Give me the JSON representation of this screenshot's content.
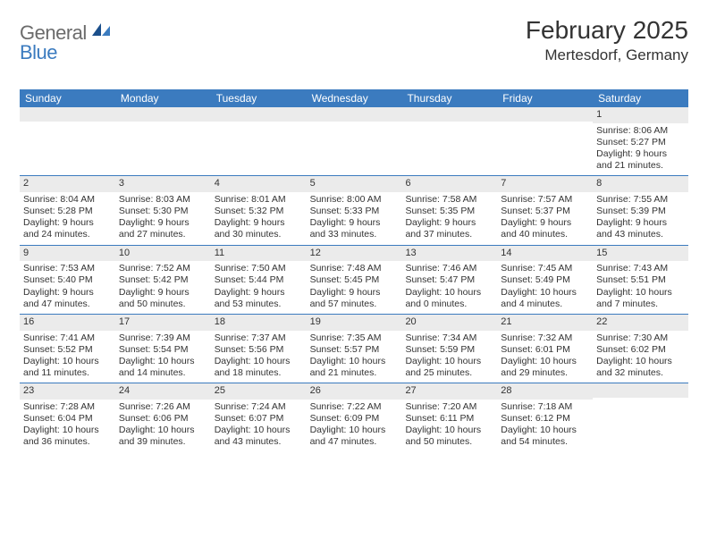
{
  "brand": {
    "part1": "General",
    "part2": "Blue",
    "icon_color": "#1b4f8b"
  },
  "title": "February 2025",
  "location": "Mertesdorf, Germany",
  "colors": {
    "header_bar": "#3b7bbf",
    "header_text": "#ffffff",
    "day_band": "#ebebeb",
    "rule": "#3b7bbf",
    "text": "#333333",
    "logo_gray": "#6b6b6b",
    "logo_blue": "#3b7bbf",
    "background": "#ffffff"
  },
  "weekdays": [
    "Sunday",
    "Monday",
    "Tuesday",
    "Wednesday",
    "Thursday",
    "Friday",
    "Saturday"
  ],
  "weeks": [
    [
      {
        "n": "",
        "sunrise": "",
        "sunset": "",
        "daylight": ""
      },
      {
        "n": "",
        "sunrise": "",
        "sunset": "",
        "daylight": ""
      },
      {
        "n": "",
        "sunrise": "",
        "sunset": "",
        "daylight": ""
      },
      {
        "n": "",
        "sunrise": "",
        "sunset": "",
        "daylight": ""
      },
      {
        "n": "",
        "sunrise": "",
        "sunset": "",
        "daylight": ""
      },
      {
        "n": "",
        "sunrise": "",
        "sunset": "",
        "daylight": ""
      },
      {
        "n": "1",
        "sunrise": "Sunrise: 8:06 AM",
        "sunset": "Sunset: 5:27 PM",
        "daylight": "Daylight: 9 hours and 21 minutes."
      }
    ],
    [
      {
        "n": "2",
        "sunrise": "Sunrise: 8:04 AM",
        "sunset": "Sunset: 5:28 PM",
        "daylight": "Daylight: 9 hours and 24 minutes."
      },
      {
        "n": "3",
        "sunrise": "Sunrise: 8:03 AM",
        "sunset": "Sunset: 5:30 PM",
        "daylight": "Daylight: 9 hours and 27 minutes."
      },
      {
        "n": "4",
        "sunrise": "Sunrise: 8:01 AM",
        "sunset": "Sunset: 5:32 PM",
        "daylight": "Daylight: 9 hours and 30 minutes."
      },
      {
        "n": "5",
        "sunrise": "Sunrise: 8:00 AM",
        "sunset": "Sunset: 5:33 PM",
        "daylight": "Daylight: 9 hours and 33 minutes."
      },
      {
        "n": "6",
        "sunrise": "Sunrise: 7:58 AM",
        "sunset": "Sunset: 5:35 PM",
        "daylight": "Daylight: 9 hours and 37 minutes."
      },
      {
        "n": "7",
        "sunrise": "Sunrise: 7:57 AM",
        "sunset": "Sunset: 5:37 PM",
        "daylight": "Daylight: 9 hours and 40 minutes."
      },
      {
        "n": "8",
        "sunrise": "Sunrise: 7:55 AM",
        "sunset": "Sunset: 5:39 PM",
        "daylight": "Daylight: 9 hours and 43 minutes."
      }
    ],
    [
      {
        "n": "9",
        "sunrise": "Sunrise: 7:53 AM",
        "sunset": "Sunset: 5:40 PM",
        "daylight": "Daylight: 9 hours and 47 minutes."
      },
      {
        "n": "10",
        "sunrise": "Sunrise: 7:52 AM",
        "sunset": "Sunset: 5:42 PM",
        "daylight": "Daylight: 9 hours and 50 minutes."
      },
      {
        "n": "11",
        "sunrise": "Sunrise: 7:50 AM",
        "sunset": "Sunset: 5:44 PM",
        "daylight": "Daylight: 9 hours and 53 minutes."
      },
      {
        "n": "12",
        "sunrise": "Sunrise: 7:48 AM",
        "sunset": "Sunset: 5:45 PM",
        "daylight": "Daylight: 9 hours and 57 minutes."
      },
      {
        "n": "13",
        "sunrise": "Sunrise: 7:46 AM",
        "sunset": "Sunset: 5:47 PM",
        "daylight": "Daylight: 10 hours and 0 minutes."
      },
      {
        "n": "14",
        "sunrise": "Sunrise: 7:45 AM",
        "sunset": "Sunset: 5:49 PM",
        "daylight": "Daylight: 10 hours and 4 minutes."
      },
      {
        "n": "15",
        "sunrise": "Sunrise: 7:43 AM",
        "sunset": "Sunset: 5:51 PM",
        "daylight": "Daylight: 10 hours and 7 minutes."
      }
    ],
    [
      {
        "n": "16",
        "sunrise": "Sunrise: 7:41 AM",
        "sunset": "Sunset: 5:52 PM",
        "daylight": "Daylight: 10 hours and 11 minutes."
      },
      {
        "n": "17",
        "sunrise": "Sunrise: 7:39 AM",
        "sunset": "Sunset: 5:54 PM",
        "daylight": "Daylight: 10 hours and 14 minutes."
      },
      {
        "n": "18",
        "sunrise": "Sunrise: 7:37 AM",
        "sunset": "Sunset: 5:56 PM",
        "daylight": "Daylight: 10 hours and 18 minutes."
      },
      {
        "n": "19",
        "sunrise": "Sunrise: 7:35 AM",
        "sunset": "Sunset: 5:57 PM",
        "daylight": "Daylight: 10 hours and 21 minutes."
      },
      {
        "n": "20",
        "sunrise": "Sunrise: 7:34 AM",
        "sunset": "Sunset: 5:59 PM",
        "daylight": "Daylight: 10 hours and 25 minutes."
      },
      {
        "n": "21",
        "sunrise": "Sunrise: 7:32 AM",
        "sunset": "Sunset: 6:01 PM",
        "daylight": "Daylight: 10 hours and 29 minutes."
      },
      {
        "n": "22",
        "sunrise": "Sunrise: 7:30 AM",
        "sunset": "Sunset: 6:02 PM",
        "daylight": "Daylight: 10 hours and 32 minutes."
      }
    ],
    [
      {
        "n": "23",
        "sunrise": "Sunrise: 7:28 AM",
        "sunset": "Sunset: 6:04 PM",
        "daylight": "Daylight: 10 hours and 36 minutes."
      },
      {
        "n": "24",
        "sunrise": "Sunrise: 7:26 AM",
        "sunset": "Sunset: 6:06 PM",
        "daylight": "Daylight: 10 hours and 39 minutes."
      },
      {
        "n": "25",
        "sunrise": "Sunrise: 7:24 AM",
        "sunset": "Sunset: 6:07 PM",
        "daylight": "Daylight: 10 hours and 43 minutes."
      },
      {
        "n": "26",
        "sunrise": "Sunrise: 7:22 AM",
        "sunset": "Sunset: 6:09 PM",
        "daylight": "Daylight: 10 hours and 47 minutes."
      },
      {
        "n": "27",
        "sunrise": "Sunrise: 7:20 AM",
        "sunset": "Sunset: 6:11 PM",
        "daylight": "Daylight: 10 hours and 50 minutes."
      },
      {
        "n": "28",
        "sunrise": "Sunrise: 7:18 AM",
        "sunset": "Sunset: 6:12 PM",
        "daylight": "Daylight: 10 hours and 54 minutes."
      },
      {
        "n": "",
        "sunrise": "",
        "sunset": "",
        "daylight": ""
      }
    ]
  ]
}
